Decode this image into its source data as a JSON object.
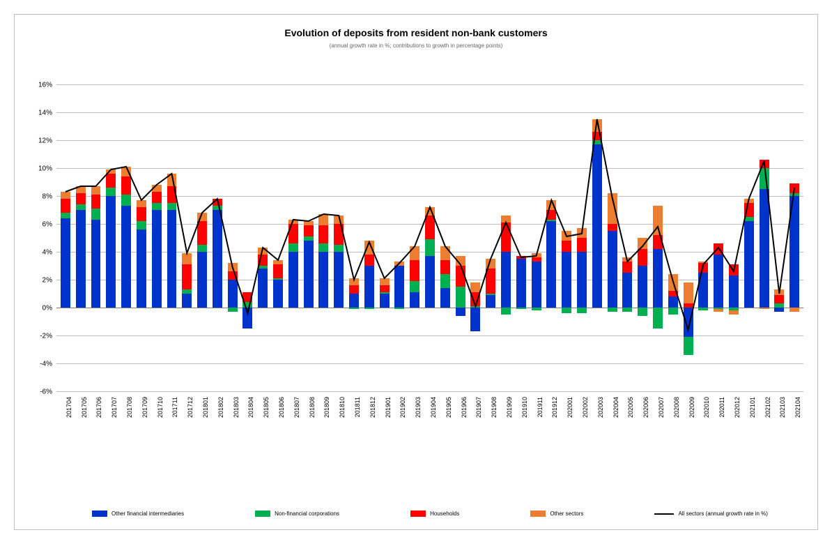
{
  "chart": {
    "title": "Evolution of deposits from resident non-bank customers",
    "subtitle": "(annual growth rate in %; contributions to growth in percentage points)",
    "title_fontsize": 14,
    "subtitle_fontsize": 8,
    "y_axis": {
      "min": -6,
      "max": 16,
      "step": 2,
      "format_pct": true
    },
    "grid_color": "#bfbfbf",
    "zero_line_color": "#808080",
    "background_color": "#ffffff",
    "categories": [
      "201704",
      "201705",
      "201706",
      "201707",
      "201708",
      "201709",
      "201710",
      "201711",
      "201712",
      "201801",
      "201802",
      "201803",
      "201804",
      "201805",
      "201806",
      "201807",
      "201808",
      "201809",
      "201810",
      "201811",
      "201812",
      "201901",
      "201902",
      "201903",
      "201904",
      "201905",
      "201906",
      "201907",
      "201908",
      "201909",
      "201910",
      "201911",
      "201912",
      "202001",
      "202002",
      "202003",
      "202004",
      "202005",
      "202006",
      "202007",
      "202008",
      "202009",
      "202010",
      "202011",
      "202012",
      "202101",
      "202102",
      "202103",
      "202104"
    ],
    "series": [
      {
        "key": "ofi",
        "name": "Other financial intermediaries",
        "color": "#0033cc",
        "values": [
          6.4,
          7.0,
          6.3,
          8.0,
          7.3,
          5.6,
          7.0,
          7.0,
          1.0,
          4.0,
          7.0,
          2.0,
          -1.5,
          2.8,
          2.0,
          4.0,
          4.8,
          4.0,
          4.0,
          1.0,
          3.0,
          1.0,
          3.0,
          1.1,
          3.7,
          1.4,
          -0.6,
          -1.7,
          0.9,
          4.0,
          3.5,
          3.3,
          6.2,
          4.0,
          4.0,
          11.7,
          5.5,
          2.5,
          3.0,
          4.2,
          0.8,
          -2.1,
          2.5,
          3.8,
          2.3,
          6.2,
          8.5,
          -0.3,
          8.0
        ]
      },
      {
        "key": "nfc",
        "name": "Non-financial corporations",
        "color": "#00b050",
        "values": [
          0.4,
          0.4,
          0.8,
          0.6,
          0.8,
          0.6,
          0.5,
          0.5,
          0.3,
          0.5,
          0.3,
          -0.3,
          0.4,
          0.2,
          0.1,
          0.6,
          0.3,
          0.6,
          0.5,
          -0.1,
          -0.1,
          0.1,
          -0.1,
          0.8,
          1.2,
          1.0,
          1.5,
          0.1,
          0.1,
          -0.5,
          -0.1,
          -0.2,
          0.1,
          -0.4,
          -0.4,
          0.3,
          -0.3,
          -0.3,
          -0.6,
          -1.5,
          -0.5,
          -1.3,
          -0.2,
          -0.1,
          -0.2,
          0.3,
          1.5,
          0.3,
          0.2
        ]
      },
      {
        "key": "hh",
        "name": "Households",
        "color": "#ff0000",
        "values": [
          1.0,
          0.8,
          1.0,
          1.0,
          1.3,
          1.0,
          0.8,
          1.2,
          1.8,
          1.7,
          0.5,
          0.6,
          0.7,
          0.8,
          1.0,
          1.4,
          0.8,
          1.3,
          1.5,
          0.6,
          0.8,
          0.5,
          0.0,
          1.5,
          1.7,
          1.0,
          1.5,
          1.0,
          1.8,
          2.1,
          0.2,
          0.3,
          0.7,
          0.8,
          1.0,
          0.6,
          0.5,
          0.8,
          1.2,
          1.0,
          0.4,
          0.3,
          0.7,
          0.8,
          0.8,
          1.0,
          0.6,
          0.6,
          0.7
        ]
      },
      {
        "key": "oth",
        "name": "Other sectors",
        "color": "#ed7d31",
        "values": [
          0.5,
          0.5,
          0.6,
          0.3,
          0.7,
          0.5,
          0.5,
          0.9,
          0.8,
          0.6,
          0.0,
          0.6,
          0.0,
          0.5,
          0.3,
          0.3,
          0.3,
          0.8,
          0.6,
          0.5,
          1.0,
          0.5,
          0.3,
          1.0,
          0.6,
          1.0,
          0.7,
          0.7,
          0.7,
          0.5,
          0.0,
          0.3,
          0.7,
          0.7,
          0.7,
          0.9,
          2.2,
          0.3,
          0.8,
          2.1,
          1.2,
          1.5,
          0.1,
          -0.2,
          -0.3,
          0.3,
          -0.1,
          0.4,
          -0.3
        ]
      }
    ],
    "line": {
      "name": "All sectors (annual growth rate in %)",
      "color": "#000000",
      "width": 2,
      "values": [
        8.3,
        8.7,
        8.7,
        9.9,
        10.1,
        7.7,
        8.8,
        9.6,
        3.9,
        6.8,
        7.8,
        2.9,
        -0.4,
        4.3,
        3.4,
        6.3,
        6.2,
        6.7,
        6.6,
        2.0,
        4.7,
        2.1,
        3.2,
        4.4,
        7.2,
        4.4,
        3.1,
        0.1,
        3.5,
        6.1,
        3.6,
        3.7,
        7.7,
        5.1,
        5.3,
        13.5,
        7.9,
        3.3,
        4.4,
        5.8,
        1.9,
        -1.6,
        3.1,
        4.3,
        2.6,
        7.8,
        10.5,
        1.0,
        8.6
      ]
    },
    "legend": [
      {
        "label": "Other financial intermediaries",
        "color": "#0033cc",
        "type": "box"
      },
      {
        "label": "Non-financial corporations",
        "color": "#00b050",
        "type": "box"
      },
      {
        "label": "Households",
        "color": "#ff0000",
        "type": "box"
      },
      {
        "label": "Other sectors",
        "color": "#ed7d31",
        "type": "box"
      },
      {
        "label": "All sectors (annual growth rate in %)",
        "color": "#000000",
        "type": "line"
      }
    ]
  }
}
